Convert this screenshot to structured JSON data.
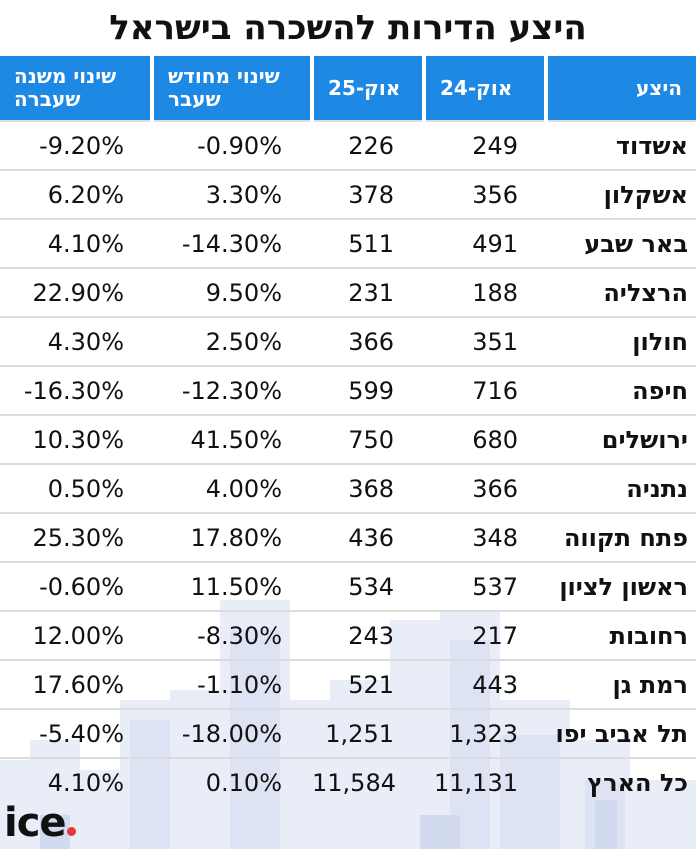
{
  "title": "היצע הדירות להשכרה בישראל",
  "columns": {
    "yoy_change": "שינוי משנה שעברה",
    "mom_change": "שינוי מחודש שעבר",
    "oct25": "אוק-25",
    "oct24": "אוק-24",
    "supply": "היצע"
  },
  "rows": [
    {
      "city": "אשדוד",
      "oct24": "249",
      "oct25": "226",
      "mom": "-0.90%",
      "yoy": "-9.20%"
    },
    {
      "city": "אשקלון",
      "oct24": "356",
      "oct25": "378",
      "mom": "3.30%",
      "yoy": "6.20%"
    },
    {
      "city": "באר שבע",
      "oct24": "491",
      "oct25": "511",
      "mom": "-14.30%",
      "yoy": "4.10%"
    },
    {
      "city": "הרצליה",
      "oct24": "188",
      "oct25": "231",
      "mom": "9.50%",
      "yoy": "22.90%"
    },
    {
      "city": "חולון",
      "oct24": "351",
      "oct25": "366",
      "mom": "2.50%",
      "yoy": "4.30%"
    },
    {
      "city": "חיפה",
      "oct24": "716",
      "oct25": "599",
      "mom": "-12.30%",
      "yoy": "-16.30%"
    },
    {
      "city": "ירושלים",
      "oct24": "680",
      "oct25": "750",
      "mom": "41.50%",
      "yoy": "10.30%"
    },
    {
      "city": "נתניה",
      "oct24": "366",
      "oct25": "368",
      "mom": "4.00%",
      "yoy": "0.50%"
    },
    {
      "city": "פתח תקווה",
      "oct24": "348",
      "oct25": "436",
      "mom": "17.80%",
      "yoy": "25.30%"
    },
    {
      "city": "ראשון לציון",
      "oct24": "537",
      "oct25": "534",
      "mom": "11.50%",
      "yoy": "-0.60%"
    },
    {
      "city": "רחובות",
      "oct24": "217",
      "oct25": "243",
      "mom": "-8.30%",
      "yoy": "12.00%"
    },
    {
      "city": "רמת גן",
      "oct24": "443",
      "oct25": "521",
      "mom": "-1.10%",
      "yoy": "17.60%"
    },
    {
      "city": "תל אביב יפו",
      "oct24": "1,323",
      "oct25": "1,251",
      "mom": "-18.00%",
      "yoy": "-5.40%"
    },
    {
      "city": "כל הארץ",
      "oct24": "11,131",
      "oct25": "11,584",
      "mom": "0.10%",
      "yoy": "4.10%"
    }
  ],
  "logo": {
    "text": "ice",
    "dot_color": "#e53935"
  },
  "colors": {
    "header_bg": "#1e88e5",
    "header_text": "#ffffff",
    "skyline": "#e6ebf7"
  }
}
